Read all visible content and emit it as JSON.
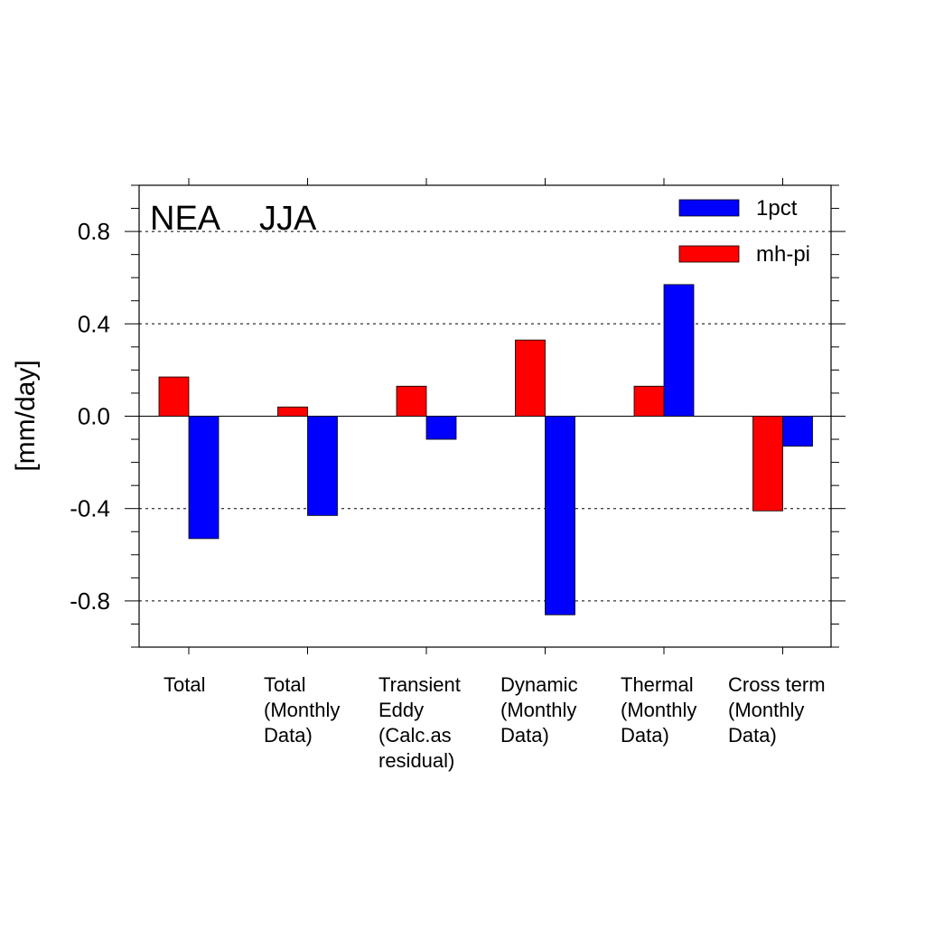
{
  "chart_data": {
    "type": "bar",
    "title_region": "NEA",
    "title_season": "JJA",
    "ylabel": "[mm/day]",
    "ylim": [
      -1.0,
      1.0
    ],
    "yticks": [
      -0.8,
      -0.4,
      0.0,
      0.4,
      0.8
    ],
    "ytick_labels": [
      "-0.8",
      "-0.4",
      "0.0",
      "0.4",
      "0.8"
    ],
    "grid": "dashed at labeled ticks",
    "legend_position": "top-right",
    "categories": [
      [
        "Total"
      ],
      [
        "Total",
        "(Monthly",
        "Data)"
      ],
      [
        "Transient",
        "Eddy",
        "(Calc.as",
        "residual)"
      ],
      [
        "Dynamic",
        "(Monthly",
        "Data)"
      ],
      [
        "Thermal",
        "(Monthly",
        "Data)"
      ],
      [
        "Cross term",
        "(Monthly",
        "Data)"
      ]
    ],
    "series": [
      {
        "name": "mh-pi",
        "color": "#ff0000",
        "values": [
          0.17,
          0.04,
          0.13,
          0.33,
          0.13,
          -0.41
        ]
      },
      {
        "name": "1pct",
        "color": "#0000ff",
        "values": [
          -0.53,
          -0.43,
          -0.1,
          -0.86,
          0.57,
          -0.13
        ]
      }
    ],
    "legend_order": [
      "1pct",
      "mh-pi"
    ]
  }
}
